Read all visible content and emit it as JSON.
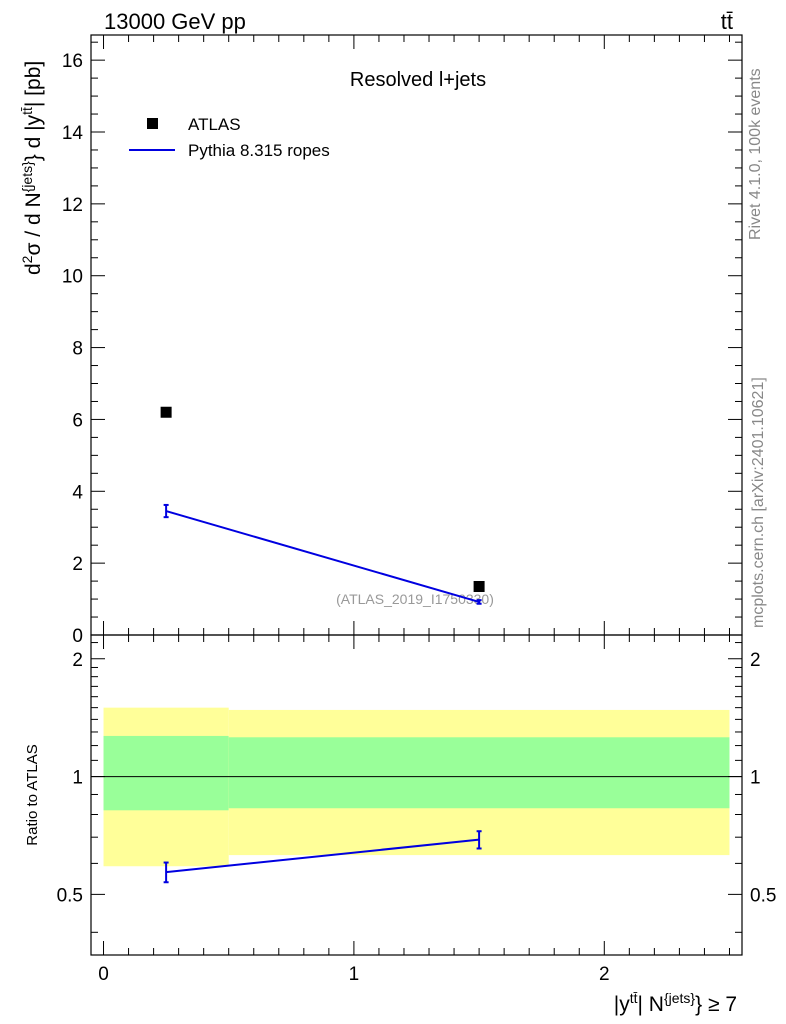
{
  "header": {
    "left_label": "13000 GeV pp",
    "right_label": "tt̄"
  },
  "side_labels": {
    "rivet": "Rivet 4.1.0,  100k events",
    "source": "mcplots.cern.ch [arXiv:2401.10621]"
  },
  "chart_data": {
    "type": "scatter",
    "title": "Resolved l+jets",
    "analysis_label": "(ATLAS_2019_I1750330)",
    "ylabel": "d²σ / d N^{jets} d |y^{tt̄}| [pb]",
    "xlabel": "|y^{tt̄}| N^{jets} ≥ 7",
    "ratio_ylabel": "Ratio to ATLAS",
    "xlim": [
      -0.05,
      2.55
    ],
    "ylim": [
      0,
      16.7
    ],
    "ratio_ylim": [
      0.35,
      2.3
    ],
    "x_ticks": [
      "0",
      "1",
      "2"
    ],
    "y_ticks": [
      "0",
      "2",
      "4",
      "6",
      "8",
      "10",
      "12",
      "14",
      "16"
    ],
    "ratio_ticks": [
      "0.5",
      "1",
      "2"
    ],
    "legend": [
      {
        "name": "ATLAS",
        "marker": "square",
        "color": "#000000"
      },
      {
        "name": "Pythia 8.315 ropes",
        "marker": "line",
        "color": "#0000e0"
      }
    ],
    "series": [
      {
        "name": "ATLAS",
        "x": [
          0.25,
          1.5
        ],
        "y": [
          6.2,
          1.35
        ]
      },
      {
        "name": "Pythia 8.315 ropes",
        "x": [
          0.25,
          1.5
        ],
        "y": [
          3.45,
          0.92
        ],
        "yerr": [
          0.17,
          0.05
        ]
      }
    ],
    "ratio": {
      "reference": 1.0,
      "bins": [
        {
          "xlo": 0.0,
          "xhi": 0.5,
          "inner": [
            0.82,
            1.27
          ],
          "outer": [
            0.59,
            1.5
          ]
        },
        {
          "xlo": 0.5,
          "xhi": 2.5,
          "inner": [
            0.83,
            1.26
          ],
          "outer": [
            0.63,
            1.48
          ]
        }
      ],
      "series": {
        "name": "Pythia 8.315 ropes",
        "x": [
          0.25,
          1.5
        ],
        "y": [
          0.57,
          0.69
        ],
        "yerr": [
          0.033,
          0.035
        ]
      }
    },
    "colors": {
      "data": "#000000",
      "mc": "#0000e0",
      "band_inner": "#99ff99",
      "band_outer": "#ffff99",
      "side_text": "#888888"
    }
  }
}
